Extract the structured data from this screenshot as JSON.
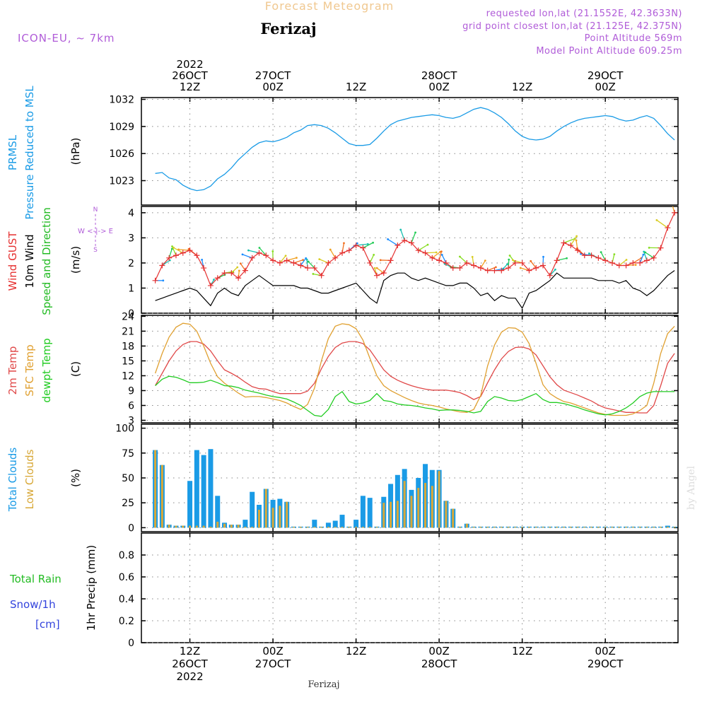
{
  "header": {
    "supertitle": "Forecast Meteogram",
    "title": "Ferizaj",
    "model": "ICON-EU, ~ 7km",
    "info": [
      "requested lon,lat (21.1552E, 42.3633N)",
      "grid point closest lon,lat (21.125E, 42.375N)",
      "Point Altitude 569m",
      "Model Point Altitude 609.25m"
    ],
    "footer": "Ferizaj",
    "watermark": "by Angel"
  },
  "colors": {
    "pressure": "#1a9be6",
    "gust": "#e53030",
    "wind": "#000000",
    "direction": "#22bb22",
    "t2m": "#e04848",
    "sfc": "#e0a030",
    "dew": "#22cc22",
    "total_cloud": "#1a9be6",
    "low_cloud": "#d8a838",
    "rain_label": "#22bb22",
    "snow_label": "#3344dd",
    "info": "#b05cd8",
    "supertitle": "#f0c890"
  },
  "time_axis": {
    "top_labels": [
      {
        "hour": 12,
        "lines": [
          "2022",
          "26OCT",
          "12Z"
        ]
      },
      {
        "hour": 24,
        "lines": [
          "27OCT",
          "00Z"
        ]
      },
      {
        "hour": 36,
        "lines": [
          "12Z"
        ]
      },
      {
        "hour": 48,
        "lines": [
          "28OCT",
          "00Z"
        ]
      },
      {
        "hour": 60,
        "lines": [
          "12Z"
        ]
      },
      {
        "hour": 72,
        "lines": [
          "29OCT",
          "00Z"
        ]
      }
    ],
    "bottom_labels": [
      {
        "hour": 12,
        "lines": [
          "12Z",
          "26OCT",
          "2022"
        ]
      },
      {
        "hour": 24,
        "lines": [
          "00Z",
          "27OCT"
        ]
      },
      {
        "hour": 36,
        "lines": [
          "12Z"
        ]
      },
      {
        "hour": 48,
        "lines": [
          "00Z",
          "28OCT"
        ]
      },
      {
        "hour": 60,
        "lines": [
          "12Z"
        ]
      },
      {
        "hour": 72,
        "lines": [
          "00Z",
          "29OCT"
        ]
      }
    ]
  },
  "chart_data": [
    {
      "type": "line",
      "title": "PRMSL Pressure Reduced to MSL",
      "ylabel": "(hPa)",
      "label_lines": [
        "PRMSL",
        "Pressure Reduced to MSL"
      ],
      "ylim": [
        1020.3,
        1032.2
      ],
      "yticks": [
        1023,
        1026,
        1029,
        1032
      ],
      "x_hours": [
        7,
        8,
        9,
        10,
        11,
        12,
        13,
        14,
        15,
        16,
        17,
        18,
        19,
        20,
        21,
        22,
        23,
        24,
        25,
        26,
        27,
        28,
        29,
        30,
        31,
        32,
        33,
        34,
        35,
        36,
        37,
        38,
        39,
        40,
        41,
        42,
        43,
        44,
        45,
        46,
        47,
        48,
        49,
        50,
        51,
        52,
        53,
        54,
        55,
        56,
        57,
        58,
        59,
        60,
        61,
        62,
        63,
        64,
        65,
        66,
        67,
        68,
        69,
        70,
        71,
        72,
        73,
        74,
        75,
        76,
        77,
        78,
        79,
        80,
        81,
        82
      ],
      "series": [
        {
          "name": "PRMSL",
          "values": [
            1023.8,
            1023.9,
            1023.3,
            1023.1,
            1022.5,
            1022.1,
            1021.9,
            1022.0,
            1022.4,
            1023.2,
            1023.7,
            1024.4,
            1025.3,
            1026.0,
            1026.7,
            1027.2,
            1027.4,
            1027.3,
            1027.5,
            1027.8,
            1028.3,
            1028.6,
            1029.1,
            1029.2,
            1029.1,
            1028.8,
            1028.3,
            1027.7,
            1027.1,
            1026.9,
            1026.9,
            1027.0,
            1027.7,
            1028.5,
            1029.2,
            1029.6,
            1029.8,
            1030.0,
            1030.1,
            1030.2,
            1030.3,
            1030.2,
            1030.0,
            1029.9,
            1030.1,
            1030.5,
            1030.9,
            1031.1,
            1030.9,
            1030.5,
            1030.0,
            1029.3,
            1028.5,
            1027.9,
            1027.6,
            1027.5,
            1027.6,
            1027.9,
            1028.5,
            1029.0,
            1029.4,
            1029.7,
            1029.9,
            1030.0,
            1030.1,
            1030.2,
            1030.1,
            1029.8,
            1029.6,
            1029.7,
            1030.0,
            1030.2,
            1029.9,
            1029.1,
            1028.2,
            1027.5
          ]
        }
      ]
    },
    {
      "type": "line",
      "title": "Wind GUST / 10m Wind Speed and Direction",
      "ylabel": "(m/s)",
      "label_lines": [
        "Wind GUST",
        "10m Wind",
        "Speed and Direction"
      ],
      "compass": [
        "N",
        "W <-|-> E",
        "S"
      ],
      "ylim": [
        0,
        4.25
      ],
      "yticks": [
        0,
        1,
        2,
        3,
        4
      ],
      "x_hours": [
        7,
        8,
        9,
        10,
        11,
        12,
        13,
        14,
        15,
        16,
        17,
        18,
        19,
        20,
        21,
        22,
        23,
        24,
        25,
        26,
        27,
        28,
        29,
        30,
        31,
        32,
        33,
        34,
        35,
        36,
        37,
        38,
        39,
        40,
        41,
        42,
        43,
        44,
        45,
        46,
        47,
        48,
        49,
        50,
        51,
        52,
        53,
        54,
        55,
        56,
        57,
        58,
        59,
        60,
        61,
        62,
        63,
        64,
        65,
        66,
        67,
        68,
        69,
        70,
        71,
        72,
        73,
        74,
        75,
        76,
        77,
        78,
        79,
        80,
        81,
        82
      ],
      "series": [
        {
          "name": "Wind GUST",
          "values": [
            1.3,
            1.9,
            2.2,
            2.3,
            2.4,
            2.5,
            2.3,
            1.8,
            1.1,
            1.4,
            1.6,
            1.6,
            1.4,
            1.7,
            2.2,
            2.4,
            2.3,
            2.1,
            2.0,
            2.1,
            2.0,
            1.9,
            1.8,
            1.8,
            1.5,
            2.0,
            2.2,
            2.4,
            2.5,
            2.7,
            2.6,
            2.0,
            1.5,
            1.6,
            2.1,
            2.7,
            2.9,
            2.8,
            2.5,
            2.4,
            2.2,
            2.1,
            2.0,
            1.8,
            1.8,
            2.0,
            1.9,
            1.8,
            1.7,
            1.7,
            1.7,
            1.8,
            2.0,
            2.0,
            1.7,
            1.8,
            1.9,
            1.5,
            2.1,
            2.8,
            2.7,
            2.5,
            2.3,
            2.3,
            2.2,
            2.1,
            2.0,
            1.9,
            1.9,
            2.0,
            2.0,
            2.1,
            2.2,
            2.6,
            3.4,
            4.0
          ]
        },
        {
          "name": "10m Wind",
          "values": [
            0.5,
            0.6,
            0.7,
            0.8,
            0.9,
            1.0,
            0.9,
            0.6,
            0.3,
            0.8,
            1.0,
            0.8,
            0.7,
            1.1,
            1.3,
            1.5,
            1.3,
            1.1,
            1.1,
            1.1,
            1.1,
            1.0,
            1.0,
            0.9,
            0.8,
            0.8,
            0.9,
            1.0,
            1.1,
            1.2,
            0.9,
            0.6,
            0.4,
            1.3,
            1.5,
            1.6,
            1.6,
            1.4,
            1.3,
            1.4,
            1.3,
            1.2,
            1.1,
            1.1,
            1.2,
            1.2,
            1.0,
            0.7,
            0.8,
            0.5,
            0.7,
            0.6,
            0.6,
            0.2,
            0.8,
            0.9,
            1.1,
            1.3,
            1.6,
            1.4,
            1.4,
            1.4,
            1.4,
            1.4,
            1.3,
            1.3,
            1.3,
            1.2,
            1.3,
            1.0,
            0.9,
            0.7,
            0.9,
            1.2,
            1.5,
            1.7
          ]
        }
      ]
    },
    {
      "type": "line",
      "title": "2m Temp / SFC Temp / dewpt Temp",
      "ylabel": "(C)",
      "label_lines": [
        "2m Temp",
        "SFC Temp",
        "dewpt Temp"
      ],
      "ylim": [
        2.5,
        24.2
      ],
      "yticks": [
        3,
        6,
        9,
        12,
        15,
        18,
        21,
        24
      ],
      "x_hours": [
        7,
        8,
        9,
        10,
        11,
        12,
        13,
        14,
        15,
        16,
        17,
        18,
        19,
        20,
        21,
        22,
        23,
        24,
        25,
        26,
        27,
        28,
        29,
        30,
        31,
        32,
        33,
        34,
        35,
        36,
        37,
        38,
        39,
        40,
        41,
        42,
        43,
        44,
        45,
        46,
        47,
        48,
        49,
        50,
        51,
        52,
        53,
        54,
        55,
        56,
        57,
        58,
        59,
        60,
        61,
        62,
        63,
        64,
        65,
        66,
        67,
        68,
        69,
        70,
        71,
        72,
        73,
        74,
        75,
        76,
        77,
        78,
        79,
        80,
        81,
        82
      ],
      "series": [
        {
          "name": "2m Temp",
          "values": [
            10.0,
            12.5,
            15.0,
            17.0,
            18.3,
            18.9,
            18.9,
            18.4,
            17.0,
            15.0,
            13.2,
            12.5,
            11.7,
            10.7,
            9.8,
            9.4,
            9.3,
            8.8,
            8.4,
            8.4,
            8.4,
            8.4,
            8.9,
            10.5,
            13.4,
            15.9,
            17.7,
            18.6,
            18.9,
            18.9,
            18.5,
            17.2,
            15.2,
            13.2,
            11.9,
            11.1,
            10.5,
            10.0,
            9.6,
            9.3,
            9.1,
            9.1,
            9.1,
            8.9,
            8.6,
            8.0,
            7.2,
            7.8,
            10.6,
            13.2,
            15.4,
            16.9,
            17.7,
            17.8,
            17.4,
            16.2,
            14.0,
            11.8,
            10.2,
            9.1,
            8.6,
            8.1,
            7.5,
            6.9,
            6.1,
            5.5,
            5.2,
            4.9,
            4.6,
            4.6,
            4.5,
            4.5,
            6.0,
            10.0,
            14.5,
            16.5
          ]
        },
        {
          "name": "SFC Temp",
          "values": [
            12.5,
            16.5,
            19.8,
            21.8,
            22.6,
            22.4,
            21.0,
            18.0,
            14.5,
            11.8,
            10.5,
            9.5,
            8.5,
            7.7,
            7.8,
            7.8,
            7.6,
            7.3,
            7.0,
            6.5,
            5.8,
            5.2,
            6.2,
            9.5,
            15.0,
            19.5,
            22.0,
            22.5,
            22.3,
            21.5,
            19.2,
            15.5,
            12.0,
            10.0,
            9.0,
            8.3,
            7.6,
            7.0,
            6.5,
            6.2,
            6.0,
            5.7,
            5.3,
            5.0,
            4.7,
            4.6,
            5.2,
            8.0,
            14.0,
            18.2,
            20.8,
            21.7,
            21.6,
            20.8,
            18.5,
            14.5,
            10.2,
            8.4,
            7.5,
            6.8,
            6.5,
            6.0,
            5.5,
            5.0,
            4.5,
            4.2,
            4.0,
            4.0,
            4.0,
            4.3,
            5.0,
            6.0,
            10.5,
            16.5,
            20.5,
            22.0
          ]
        },
        {
          "name": "dewpt Temp",
          "values": [
            10.0,
            11.3,
            11.9,
            11.7,
            11.2,
            10.6,
            10.6,
            10.7,
            11.1,
            10.6,
            10.0,
            9.9,
            9.6,
            9.1,
            8.8,
            8.5,
            8.1,
            7.8,
            7.6,
            7.3,
            6.7,
            6.0,
            5.0,
            4.0,
            3.8,
            5.2,
            7.8,
            8.8,
            6.8,
            6.3,
            6.5,
            7.0,
            8.4,
            7.0,
            6.8,
            6.3,
            6.1,
            6.0,
            5.8,
            5.5,
            5.3,
            5.0,
            5.1,
            5.1,
            5.0,
            4.8,
            4.5,
            4.8,
            6.8,
            7.8,
            7.5,
            7.0,
            6.9,
            7.2,
            7.8,
            8.4,
            7.2,
            6.6,
            6.6,
            6.4,
            6.0,
            5.6,
            5.1,
            4.7,
            4.3,
            4.1,
            4.3,
            4.8,
            5.5,
            6.5,
            7.8,
            8.5,
            8.8,
            8.8,
            8.8,
            8.8
          ]
        }
      ]
    },
    {
      "type": "bar",
      "title": "Total Clouds / Low Clouds",
      "ylabel": "(%)",
      "label_lines": [
        "Total Clouds",
        "Low Clouds"
      ],
      "ylim": [
        -4,
        104
      ],
      "yticks": [
        0,
        25,
        50,
        75,
        100
      ],
      "x_hours": [
        7,
        8,
        9,
        10,
        11,
        12,
        13,
        14,
        15,
        16,
        17,
        18,
        19,
        20,
        21,
        22,
        23,
        24,
        25,
        26,
        27,
        28,
        29,
        30,
        31,
        32,
        33,
        34,
        35,
        36,
        37,
        38,
        39,
        40,
        41,
        42,
        43,
        44,
        45,
        46,
        47,
        48,
        49,
        50,
        51,
        52,
        53,
        54,
        55,
        56,
        57,
        58,
        59,
        60,
        61,
        62,
        63,
        64,
        65,
        66,
        67,
        68,
        69,
        70,
        71,
        72,
        73,
        74,
        75,
        76,
        77,
        78,
        79,
        80,
        81,
        82
      ],
      "series": [
        {
          "name": "Total Clouds",
          "values": [
            78,
            63,
            3,
            2,
            2,
            47,
            78,
            73,
            79,
            32,
            5,
            3,
            3,
            8,
            36,
            23,
            39,
            28,
            29,
            26,
            0,
            0,
            0,
            8,
            1,
            5,
            7,
            13,
            1,
            8,
            32,
            30,
            0,
            31,
            44,
            53,
            59,
            38,
            50,
            64,
            58,
            58,
            27,
            19,
            0,
            4,
            1,
            1,
            0,
            0,
            0,
            0,
            0,
            0,
            0,
            0,
            0,
            0,
            0,
            0,
            0,
            0,
            0,
            0,
            0,
            0,
            0,
            0,
            0,
            0,
            0,
            0,
            0,
            0,
            2,
            0
          ]
        },
        {
          "name": "Low Clouds",
          "values": [
            78,
            63,
            3,
            2,
            2,
            2,
            2,
            2,
            1,
            6,
            4,
            3,
            3,
            1,
            0,
            18,
            39,
            20,
            22,
            26,
            0,
            0,
            0,
            0,
            0,
            0,
            0,
            0,
            0,
            0,
            0,
            0,
            0,
            25,
            26,
            27,
            47,
            32,
            40,
            45,
            42,
            57,
            27,
            19,
            0,
            4,
            0,
            0,
            0,
            0,
            0,
            0,
            0,
            0,
            0,
            0,
            0,
            0,
            0,
            0,
            0,
            0,
            0,
            0,
            0,
            0,
            0,
            0,
            0,
            0,
            0,
            0,
            0,
            0,
            1,
            0
          ]
        }
      ]
    },
    {
      "type": "bar",
      "title": "Total Rain / Snow/1h",
      "ylabel": "1hr Precip (mm)",
      "label_lines": [
        "Total  Rain",
        "Snow/1h",
        "[cm]"
      ],
      "ylim": [
        0,
        1
      ],
      "yticks": [
        0,
        0.2,
        0.4,
        0.6,
        0.8
      ],
      "ytick_labels": [
        "0",
        "0.2",
        "0.4",
        "0.6",
        "0.8"
      ],
      "x_hours": [],
      "series": [
        {
          "name": "Total Rain",
          "values": []
        },
        {
          "name": "Snow/1h",
          "values": []
        }
      ]
    }
  ]
}
